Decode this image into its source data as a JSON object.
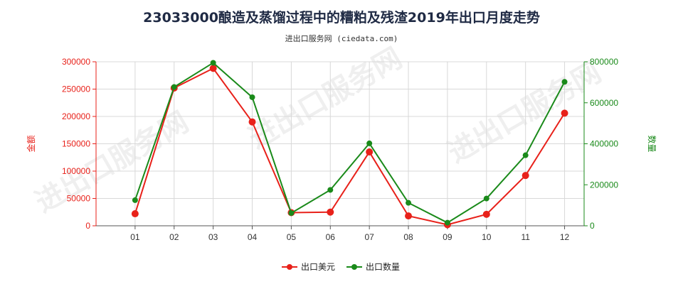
{
  "chart_data": {
    "type": "line",
    "title": "23033000酿造及蒸馏过程中的糟粕及残渣2019年出口月度走势",
    "subtitle": "进出口服务网 (ciedata.com)",
    "watermark": "进出口服务网",
    "categories": [
      "01",
      "02",
      "03",
      "04",
      "05",
      "06",
      "07",
      "08",
      "09",
      "10",
      "11",
      "12"
    ],
    "y_left": {
      "label": "金额",
      "ylim": [
        0,
        300000
      ],
      "ticks": [
        "0",
        "50000",
        "100000",
        "150000",
        "200000",
        "250000",
        "300000"
      ],
      "color": "#e8211a"
    },
    "y_right": {
      "label": "数量",
      "ylim": [
        0,
        800000
      ],
      "ticks": [
        "0",
        "200000",
        "400000",
        "600000",
        "800000"
      ],
      "color": "#1a8a1a"
    },
    "series": [
      {
        "name": "出口美元",
        "axis": "left",
        "color": "#e8211a",
        "values": [
          22000,
          252000,
          288000,
          190000,
          24000,
          25000,
          135000,
          18000,
          2000,
          21000,
          92000,
          206000
        ]
      },
      {
        "name": "出口数量",
        "axis": "right",
        "color": "#1a8a1a",
        "values": [
          125000,
          677000,
          795000,
          627000,
          62000,
          175000,
          402000,
          112000,
          15000,
          133000,
          344000,
          702000
        ]
      }
    ],
    "grid": true,
    "legend_position": "bottom-center"
  }
}
